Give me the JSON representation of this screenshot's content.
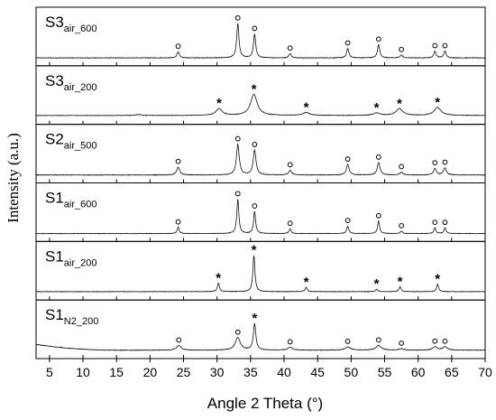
{
  "chart_data": {
    "type": "line",
    "xlabel": "Angle 2 Theta (°)",
    "ylabel": "Intensity (a.u.)",
    "xlim": [
      3,
      70
    ],
    "x_ticks": [
      5,
      10,
      15,
      20,
      25,
      30,
      35,
      40,
      45,
      50,
      55,
      60,
      65,
      70
    ],
    "panels": [
      {
        "label_main": "S3",
        "label_sub": "air_600",
        "baseline": 0.09,
        "noise": 0.012,
        "peaks": [
          [
            24.2,
            0.13,
            0.2
          ],
          [
            33.1,
            0.72,
            0.2
          ],
          [
            35.6,
            0.5,
            0.2
          ],
          [
            40.9,
            0.09,
            0.2
          ],
          [
            49.5,
            0.2,
            0.2
          ],
          [
            54.1,
            0.28,
            0.2
          ],
          [
            57.5,
            0.06,
            0.2
          ],
          [
            62.5,
            0.14,
            0.2
          ],
          [
            64.0,
            0.14,
            0.2
          ]
        ],
        "markers": [
          [
            "o",
            24.2
          ],
          [
            "o",
            33.1
          ],
          [
            "o",
            35.6
          ],
          [
            "o",
            40.9
          ],
          [
            "o",
            49.5
          ],
          [
            "o",
            54.1
          ],
          [
            "o",
            57.5
          ],
          [
            "o",
            62.5
          ],
          [
            "o",
            64.0
          ]
        ]
      },
      {
        "label_main": "S3",
        "label_sub": "air_200",
        "baseline": 0.11,
        "noise": 0.01,
        "peaks": [
          [
            30.3,
            0.14,
            0.55
          ],
          [
            35.5,
            0.44,
            0.6
          ],
          [
            43.3,
            0.06,
            0.6
          ],
          [
            53.8,
            0.05,
            0.6
          ],
          [
            57.2,
            0.14,
            0.6
          ],
          [
            62.9,
            0.17,
            0.6
          ],
          [
            18.3,
            0.02,
            0.5
          ]
        ],
        "markers": [
          [
            "*",
            30.3
          ],
          [
            "*",
            35.5
          ],
          [
            "*",
            43.3
          ],
          [
            "*",
            53.8
          ],
          [
            "*",
            57.2
          ],
          [
            "*",
            62.9
          ]
        ]
      },
      {
        "label_main": "S2",
        "label_sub": "air_500",
        "baseline": 0.09,
        "noise": 0.012,
        "peaks": [
          [
            24.2,
            0.17,
            0.25
          ],
          [
            33.1,
            0.64,
            0.25
          ],
          [
            35.6,
            0.52,
            0.25
          ],
          [
            40.9,
            0.1,
            0.25
          ],
          [
            49.5,
            0.22,
            0.25
          ],
          [
            54.1,
            0.26,
            0.25
          ],
          [
            57.5,
            0.06,
            0.25
          ],
          [
            62.5,
            0.14,
            0.25
          ],
          [
            64.0,
            0.15,
            0.25
          ]
        ],
        "markers": [
          [
            "o",
            24.2
          ],
          [
            "o",
            33.1
          ],
          [
            "o",
            35.6
          ],
          [
            "o",
            40.9
          ],
          [
            "o",
            49.5
          ],
          [
            "o",
            54.1
          ],
          [
            "o",
            57.5
          ],
          [
            "o",
            62.5
          ],
          [
            "o",
            64.0
          ]
        ]
      },
      {
        "label_main": "S1",
        "label_sub": "air_600",
        "baseline": 0.09,
        "noise": 0.01,
        "peaks": [
          [
            24.2,
            0.13,
            0.18
          ],
          [
            33.1,
            0.72,
            0.18
          ],
          [
            35.6,
            0.46,
            0.18
          ],
          [
            40.9,
            0.1,
            0.18
          ],
          [
            49.5,
            0.16,
            0.18
          ],
          [
            54.1,
            0.26,
            0.18
          ],
          [
            57.5,
            0.05,
            0.18
          ],
          [
            62.5,
            0.12,
            0.18
          ],
          [
            64.0,
            0.12,
            0.18
          ]
        ],
        "markers": [
          [
            "o",
            24.2
          ],
          [
            "o",
            33.1
          ],
          [
            "o",
            35.6
          ],
          [
            "o",
            40.9
          ],
          [
            "o",
            49.5
          ],
          [
            "o",
            54.1
          ],
          [
            "o",
            57.5
          ],
          [
            "o",
            62.5
          ],
          [
            "o",
            64.0
          ]
        ]
      },
      {
        "label_main": "S1",
        "label_sub": "air_200",
        "baseline": 0.1,
        "noise": 0.01,
        "peaks": [
          [
            30.2,
            0.18,
            0.18
          ],
          [
            35.5,
            0.76,
            0.18
          ],
          [
            43.3,
            0.09,
            0.18
          ],
          [
            53.8,
            0.05,
            0.18
          ],
          [
            57.3,
            0.1,
            0.18
          ],
          [
            62.9,
            0.16,
            0.18
          ]
        ],
        "markers": [
          [
            "*",
            30.2
          ],
          [
            "*",
            35.5
          ],
          [
            "*",
            43.3
          ],
          [
            "*",
            53.8
          ],
          [
            "*",
            57.3
          ],
          [
            "*",
            62.9
          ]
        ]
      },
      {
        "label_main": "S1",
        "label_sub": "N2_200",
        "baseline": 0.1,
        "noise": 0.012,
        "hump": 0.12,
        "peaks": [
          [
            24.3,
            0.1,
            0.4
          ],
          [
            33.1,
            0.26,
            0.45
          ],
          [
            35.6,
            0.55,
            0.22
          ],
          [
            40.9,
            0.06,
            0.4
          ],
          [
            49.5,
            0.07,
            0.45
          ],
          [
            54.1,
            0.1,
            0.45
          ],
          [
            57.5,
            0.03,
            0.4
          ],
          [
            62.5,
            0.07,
            0.4
          ],
          [
            64.0,
            0.07,
            0.4
          ]
        ],
        "markers": [
          [
            "o",
            24.3
          ],
          [
            "o",
            33.1
          ],
          [
            "*",
            35.6
          ],
          [
            "o",
            40.9
          ],
          [
            "o",
            49.5
          ],
          [
            "o",
            54.1
          ],
          [
            "o",
            57.5
          ],
          [
            "o",
            62.5
          ],
          [
            "o",
            64.0
          ]
        ]
      }
    ]
  }
}
